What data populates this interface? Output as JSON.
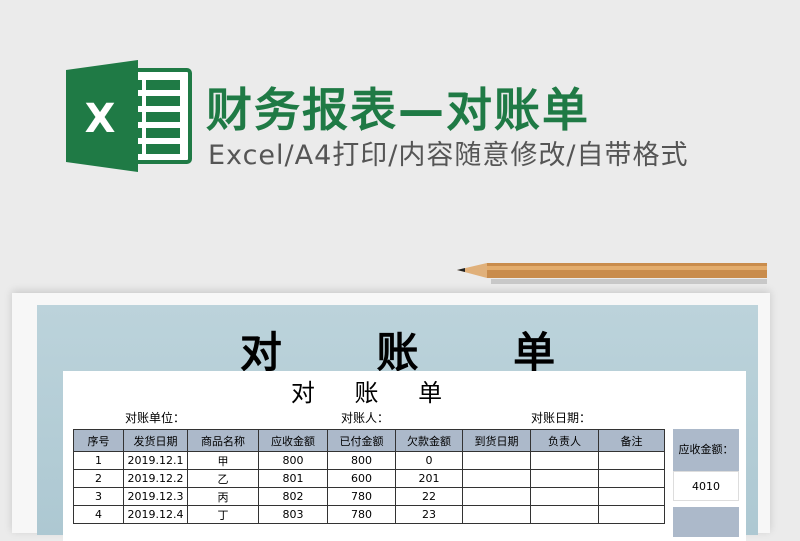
{
  "header": {
    "title": "财务报表—对账单",
    "subtitle": "Excel/A4打印/内容随意修改/自带格式",
    "logo_letter": "X",
    "brand_color": "#1f7a45"
  },
  "document": {
    "big_title": "对 账 单",
    "sheet_title": "对 账 单",
    "labels": {
      "unit": "对账单位：",
      "person": "对账人：",
      "date": "对账日期："
    },
    "columns": [
      "序号",
      "发货日期",
      "商品名称",
      "应收金额",
      "已付金额",
      "欠款金额",
      "到货日期",
      "负责人",
      "备注"
    ],
    "rows": [
      [
        "1",
        "2019.12.1",
        "甲",
        "800",
        "800",
        "0",
        "",
        "",
        ""
      ],
      [
        "2",
        "2019.12.2",
        "乙",
        "801",
        "600",
        "201",
        "",
        "",
        ""
      ],
      [
        "3",
        "2019.12.3",
        "丙",
        "802",
        "780",
        "22",
        "",
        "",
        ""
      ],
      [
        "4",
        "2019.12.4",
        "丁",
        "803",
        "780",
        "23",
        "",
        "",
        ""
      ]
    ],
    "side": {
      "label": "应收金额：",
      "value": "4010"
    }
  }
}
